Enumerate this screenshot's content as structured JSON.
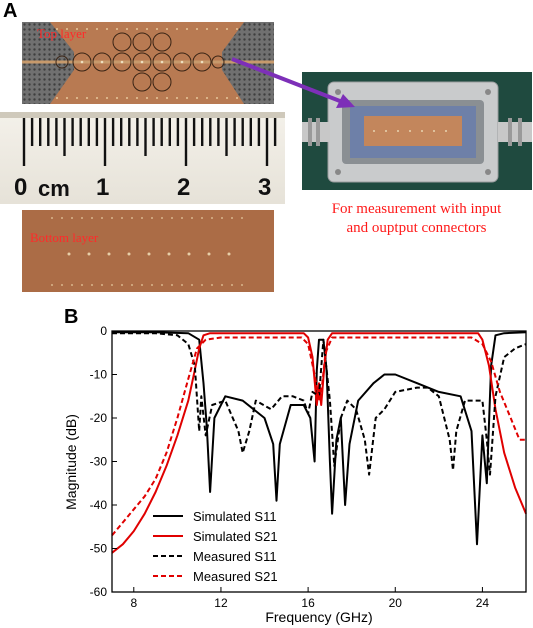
{
  "panel_a": {
    "letter": "A",
    "top_layer_label": "Top layer",
    "bottom_layer_label": "Bottom layer",
    "ruler_labels": [
      "0",
      "cm",
      "1",
      "2",
      "3"
    ],
    "caption_line1": "For measurement with input",
    "caption_line2": "and ouptput connectors",
    "arrow_color": "#7d2fb8"
  },
  "panel_b": {
    "letter": "B"
  },
  "chart_data": {
    "type": "line",
    "title": "",
    "xlabel": "Frequency (GHz)",
    "ylabel": "Magnitude (dB)",
    "xlim": [
      7,
      26
    ],
    "ylim": [
      -60,
      0
    ],
    "xticks": [
      "8",
      "12",
      "16",
      "20",
      "24"
    ],
    "yticks": [
      "0",
      "-10",
      "-20",
      "-30",
      "-40",
      "-50",
      "-60"
    ],
    "grid": false,
    "legend_position": "bottom-left",
    "series": [
      {
        "name": "Simulated S11",
        "color": "#000000",
        "style": "solid",
        "points": [
          [
            7,
            -0.3
          ],
          [
            9,
            -0.3
          ],
          [
            10.5,
            -0.5
          ],
          [
            11,
            -2
          ],
          [
            11.2,
            -12
          ],
          [
            11.35,
            -22
          ],
          [
            11.5,
            -37
          ],
          [
            11.7,
            -20
          ],
          [
            12.2,
            -15
          ],
          [
            13,
            -16
          ],
          [
            14,
            -20
          ],
          [
            14.4,
            -26
          ],
          [
            14.55,
            -39
          ],
          [
            14.7,
            -26
          ],
          [
            15.2,
            -17
          ],
          [
            15.8,
            -17
          ],
          [
            16.1,
            -20
          ],
          [
            16.3,
            -30
          ],
          [
            16.4,
            -9
          ],
          [
            16.5,
            -2
          ],
          [
            16.7,
            -2
          ],
          [
            16.85,
            -9
          ],
          [
            17.0,
            -30
          ],
          [
            17.1,
            -42
          ],
          [
            17.3,
            -25
          ],
          [
            17.5,
            -20
          ],
          [
            17.7,
            -40
          ],
          [
            17.9,
            -26
          ],
          [
            18.3,
            -16
          ],
          [
            19,
            -12
          ],
          [
            19.5,
            -10
          ],
          [
            20,
            -10
          ],
          [
            21,
            -12
          ],
          [
            22,
            -14
          ],
          [
            23,
            -15
          ],
          [
            23.5,
            -23
          ],
          [
            23.75,
            -49
          ],
          [
            24.0,
            -24
          ],
          [
            24.2,
            -35
          ],
          [
            24.4,
            -8
          ],
          [
            24.6,
            -1
          ],
          [
            25,
            -0.5
          ],
          [
            26,
            -0.3
          ]
        ]
      },
      {
        "name": "Simulated S21",
        "color": "#e00000",
        "style": "solid",
        "points": [
          [
            7,
            -51
          ],
          [
            7.5,
            -49
          ],
          [
            8,
            -46
          ],
          [
            8.5,
            -42
          ],
          [
            9,
            -37
          ],
          [
            9.5,
            -31
          ],
          [
            10,
            -24
          ],
          [
            10.5,
            -16
          ],
          [
            10.8,
            -9
          ],
          [
            11,
            -4
          ],
          [
            11.2,
            -1
          ],
          [
            11.5,
            -0.5
          ],
          [
            15.8,
            -0.5
          ],
          [
            16.0,
            -1.5
          ],
          [
            16.2,
            -6
          ],
          [
            16.4,
            -17
          ],
          [
            16.5,
            -12
          ],
          [
            16.6,
            -17
          ],
          [
            16.75,
            -8
          ],
          [
            16.9,
            -2
          ],
          [
            17.1,
            -0.5
          ],
          [
            23.8,
            -0.5
          ],
          [
            24.0,
            -2
          ],
          [
            24.3,
            -8
          ],
          [
            24.6,
            -18
          ],
          [
            25,
            -28
          ],
          [
            25.5,
            -36
          ],
          [
            26,
            -42
          ]
        ]
      },
      {
        "name": "Measured S11",
        "color": "#000000",
        "style": "dashed",
        "points": [
          [
            7,
            -0.5
          ],
          [
            9,
            -0.5
          ],
          [
            10,
            -1
          ],
          [
            10.5,
            -3
          ],
          [
            10.8,
            -8
          ],
          [
            11.0,
            -23
          ],
          [
            11.1,
            -15
          ],
          [
            11.3,
            -24
          ],
          [
            11.6,
            -17
          ],
          [
            12.2,
            -16
          ],
          [
            12.8,
            -23
          ],
          [
            13.0,
            -28
          ],
          [
            13.3,
            -23
          ],
          [
            13.6,
            -16
          ],
          [
            14.3,
            -18
          ],
          [
            14.8,
            -15
          ],
          [
            15.3,
            -15
          ],
          [
            15.8,
            -16
          ],
          [
            16.0,
            -19
          ],
          [
            16.2,
            -14
          ],
          [
            16.5,
            -15
          ],
          [
            16.7,
            -2
          ],
          [
            17.0,
            -16
          ],
          [
            17.2,
            -31
          ],
          [
            17.5,
            -20
          ],
          [
            17.8,
            -16
          ],
          [
            18.2,
            -18
          ],
          [
            18.6,
            -25
          ],
          [
            18.8,
            -33
          ],
          [
            19.1,
            -20
          ],
          [
            19.5,
            -18
          ],
          [
            20,
            -14
          ],
          [
            21,
            -13
          ],
          [
            21.5,
            -13
          ],
          [
            22,
            -15
          ],
          [
            22.5,
            -25
          ],
          [
            22.65,
            -32
          ],
          [
            22.8,
            -23
          ],
          [
            23.2,
            -16
          ],
          [
            24,
            -16
          ],
          [
            24.2,
            -25
          ],
          [
            24.35,
            -33
          ],
          [
            24.6,
            -15
          ],
          [
            25,
            -6
          ],
          [
            25.5,
            -4
          ],
          [
            26,
            -3
          ]
        ]
      },
      {
        "name": "Measured S21",
        "color": "#e00000",
        "style": "dashed",
        "points": [
          [
            7,
            -47
          ],
          [
            7.5,
            -44
          ],
          [
            8,
            -41
          ],
          [
            8.5,
            -38
          ],
          [
            9,
            -34
          ],
          [
            9.5,
            -28
          ],
          [
            10,
            -20
          ],
          [
            10.5,
            -11
          ],
          [
            10.9,
            -4
          ],
          [
            11.3,
            -2
          ],
          [
            12,
            -1.5
          ],
          [
            15.7,
            -1.5
          ],
          [
            16.0,
            -3
          ],
          [
            16.3,
            -10
          ],
          [
            16.5,
            -16
          ],
          [
            16.65,
            -12
          ],
          [
            16.8,
            -5
          ],
          [
            17.1,
            -1.5
          ],
          [
            23.5,
            -1.5
          ],
          [
            24.0,
            -3
          ],
          [
            24.4,
            -7
          ],
          [
            24.8,
            -14
          ],
          [
            25.3,
            -20
          ],
          [
            25.7,
            -25
          ],
          [
            26,
            -25
          ]
        ]
      }
    ]
  }
}
